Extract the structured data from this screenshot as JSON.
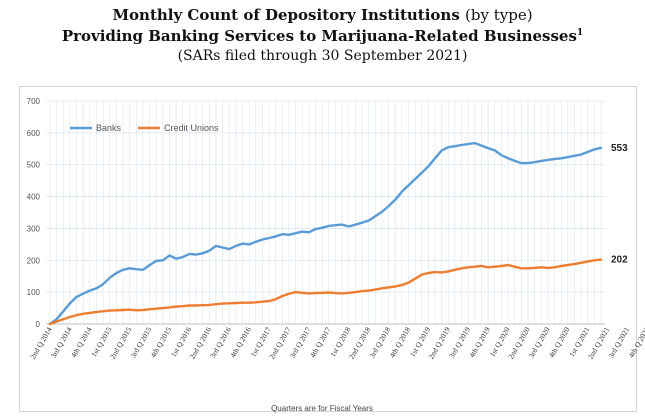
{
  "header": {
    "title_bold": "Monthly Count of Depository Institutions",
    "title_light": "(by type)",
    "subtitle": "Providing Banking Services to Marijuana-Related Businesses",
    "footnote_mark": "1",
    "note": "(SARs filed through 30 September 2021)"
  },
  "chart_data": {
    "type": "line",
    "xlabel": "Quarters are for Fiscal Years",
    "ylabel": "",
    "ylim": [
      0,
      700
    ],
    "yticks": [
      0,
      100,
      200,
      300,
      400,
      500,
      600,
      700
    ],
    "grid": true,
    "legend_position": "top-left",
    "x_tick_labels": [
      "2nd Q 2014",
      "3rd Q 2014",
      "4th Q 2014",
      "1st Q 2015",
      "2nd Q 2015",
      "3rd Q 2015",
      "4th Q 2015",
      "1st Q 2016",
      "2nd Q 2016",
      "3rd Q 2016",
      "4th Q 2016",
      "1st Q 2017",
      "2nd Q 2017",
      "3rd Q 2017",
      "4th Q 2017",
      "1st Q 2018",
      "2nd Q 2018",
      "3rd Q 2018",
      "4th Q 2018",
      "1st Q 2019",
      "2nd Q 2019",
      "3rd Q 2019",
      "4th Q 2019",
      "1st Q 2020",
      "2nd Q 2020",
      "3rd Q 2020",
      "4th Q 2020",
      "1st Q 2021",
      "2nd Q 2021",
      "3rd Q 2021",
      "4th Q 2021"
    ],
    "points_per_quarter": 3,
    "series": [
      {
        "name": "Banks",
        "color": "#5b9bd5",
        "end_label": "553",
        "values": [
          0,
          15,
          40,
          65,
          85,
          95,
          105,
          112,
          125,
          145,
          160,
          170,
          175,
          172,
          170,
          185,
          198,
          200,
          215,
          205,
          210,
          220,
          218,
          222,
          230,
          245,
          240,
          235,
          245,
          252,
          250,
          258,
          265,
          270,
          275,
          282,
          280,
          285,
          290,
          288,
          298,
          302,
          308,
          310,
          312,
          306,
          312,
          318,
          325,
          338,
          352,
          370,
          390,
          415,
          435,
          455,
          475,
          495,
          520,
          545,
          555,
          558,
          562,
          565,
          568,
          560,
          552,
          545,
          530,
          520,
          512,
          505,
          505,
          508,
          512,
          515,
          518,
          520,
          524,
          528,
          532,
          540,
          548,
          553
        ]
      },
      {
        "name": "Credit Unions",
        "color": "#ed7d31",
        "end_label": "202",
        "values": [
          0,
          8,
          15,
          22,
          28,
          32,
          35,
          38,
          40,
          42,
          43,
          44,
          45,
          43,
          44,
          46,
          48,
          50,
          52,
          55,
          56,
          58,
          58,
          59,
          60,
          62,
          64,
          65,
          66,
          67,
          67,
          68,
          70,
          72,
          78,
          88,
          95,
          100,
          98,
          96,
          97,
          98,
          99,
          97,
          96,
          98,
          100,
          103,
          105,
          108,
          112,
          115,
          118,
          122,
          130,
          142,
          155,
          160,
          163,
          162,
          165,
          170,
          175,
          178,
          180,
          182,
          178,
          180,
          182,
          185,
          180,
          175,
          175,
          176,
          178,
          176,
          178,
          182,
          185,
          188,
          192,
          196,
          200,
          202
        ]
      }
    ]
  }
}
